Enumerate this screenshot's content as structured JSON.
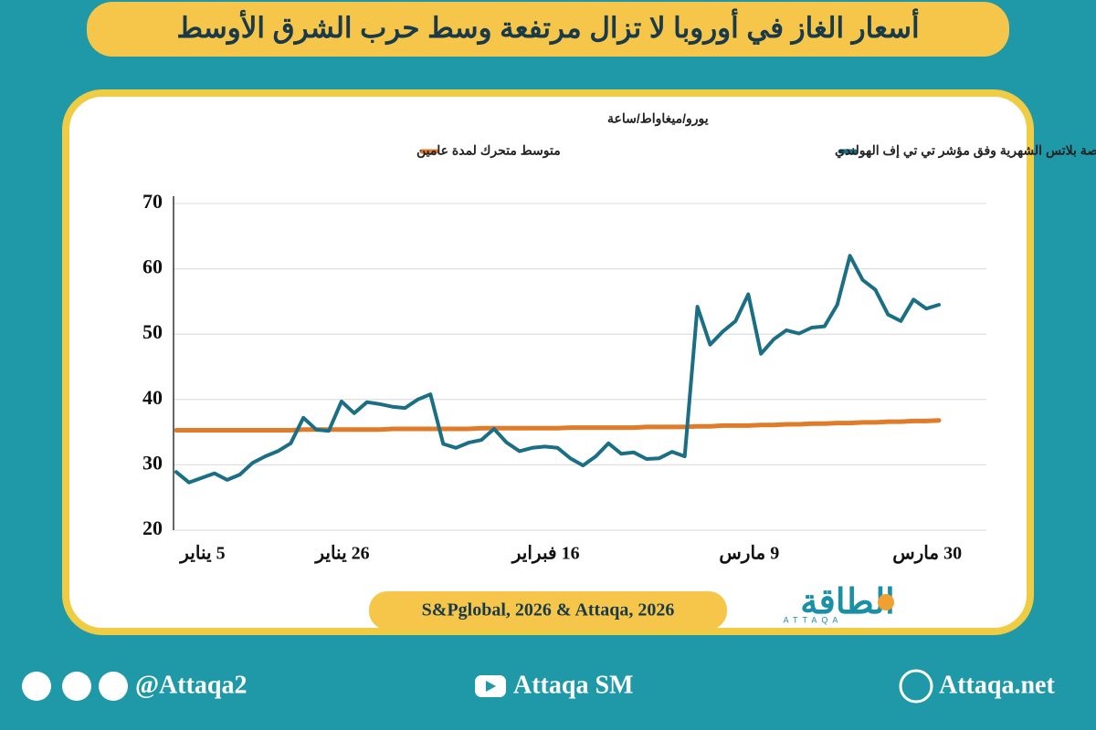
{
  "header": {
    "title": "أسعار الغاز في أوروبا لا تزال مرتفعة وسط حرب الشرق الأوسط"
  },
  "chart_data": {
    "type": "line",
    "y_label": "يورو/ميغاواط/ساعة",
    "categories": [
      null,
      "5 يناير",
      null,
      null,
      null,
      null,
      null,
      null,
      null,
      null,
      null,
      null,
      "26 يناير",
      null,
      null,
      null,
      null,
      null,
      null,
      null,
      null,
      null,
      null,
      null,
      null,
      null,
      null,
      null,
      "16 فبراير",
      null,
      null,
      null,
      null,
      null,
      null,
      null,
      null,
      null,
      null,
      null,
      null,
      null,
      null,
      null,
      "9 مارس",
      null,
      null,
      null,
      null,
      null,
      null,
      null,
      null,
      null,
      null,
      null,
      null,
      null,
      "30 مارس",
      null,
      null
    ],
    "series": [
      {
        "name": "تقييمات منصة بلاتس الشهرية وفق مؤشر تي تي إف الهولندي",
        "color": "#1b6f84",
        "values": [
          28.9,
          27.3,
          28.0,
          28.7,
          27.7,
          28.5,
          30.3,
          31.3,
          32.1,
          33.3,
          37.2,
          35.4,
          35.2,
          39.7,
          37.9,
          39.6,
          39.3,
          38.9,
          38.7,
          40.0,
          40.8,
          33.2,
          32.6,
          33.4,
          33.8,
          35.5,
          33.4,
          32.1,
          32.6,
          32.8,
          32.6,
          31.0,
          29.9,
          31.3,
          33.3,
          31.7,
          31.9,
          30.9,
          31.0,
          32.0,
          31.3,
          54.2,
          48.4,
          50.4,
          52.0,
          56.1,
          47.0,
          49.2,
          50.6,
          50.1,
          51.0,
          51.2,
          54.5,
          62.0,
          58.3,
          56.8,
          53.0,
          52.0,
          55.3,
          53.9,
          54.5
        ]
      },
      {
        "name": "متوسط متحرك لمدة عامين",
        "color": "#e07b2a",
        "values": [
          35.3,
          35.3,
          35.3,
          35.3,
          35.3,
          35.3,
          35.3,
          35.3,
          35.3,
          35.3,
          35.4,
          35.4,
          35.4,
          35.4,
          35.4,
          35.4,
          35.4,
          35.5,
          35.5,
          35.5,
          35.5,
          35.5,
          35.5,
          35.5,
          35.6,
          35.6,
          35.6,
          35.6,
          35.6,
          35.6,
          35.6,
          35.7,
          35.7,
          35.7,
          35.7,
          35.7,
          35.7,
          35.8,
          35.8,
          35.8,
          35.8,
          35.9,
          35.9,
          36.0,
          36.0,
          36.0,
          36.1,
          36.1,
          36.2,
          36.2,
          36.3,
          36.3,
          36.4,
          36.4,
          36.5,
          36.5,
          36.6,
          36.6,
          36.7,
          36.7,
          36.8
        ]
      }
    ],
    "ylim": [
      20,
      70
    ],
    "yticks": [
      20,
      30,
      40,
      50,
      60,
      70
    ],
    "grid": true,
    "legend": "top"
  },
  "source": "S&Pglobal, 2026 & Attaqa, 2026",
  "logo": {
    "name": "الطاقة",
    "sub": "ATTAQA"
  },
  "footer": {
    "social": "@Attaqa2",
    "youtube": "Attaqa SM",
    "website": "Attaqa.net"
  }
}
